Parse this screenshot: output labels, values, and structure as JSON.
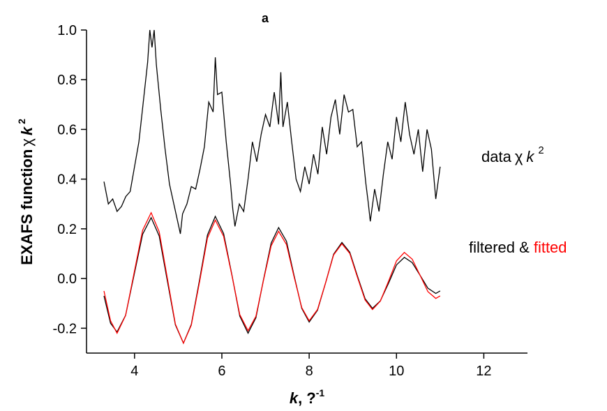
{
  "chart_data": {
    "type": "line",
    "title": "a",
    "x_label": [
      "k",
      ", ?",
      "-1"
    ],
    "y_label": [
      "EXAFS function",
      "χ",
      "k",
      "2"
    ],
    "annotations": {
      "data": [
        "data",
        "χ",
        "k",
        "2"
      ],
      "fit": [
        "filtered &",
        "fitted"
      ]
    },
    "xlim": [
      2.9,
      13
    ],
    "xticks": [
      4,
      6,
      8,
      10,
      12
    ],
    "ylim": [
      -0.3,
      1.0
    ],
    "yticks": [
      -0.2,
      {
        "value": 0,
        "label": "0.0"
      },
      0.2,
      0.4,
      0.6,
      0.8,
      {
        "value": 1,
        "label": "1.0"
      }
    ],
    "x": [
      3.3,
      3.45,
      3.6,
      3.795,
      3.99,
      4.185,
      4.38,
      4.565,
      4.75,
      4.935,
      5.12,
      5.3,
      5.49,
      5.67,
      5.85,
      6.04,
      6.23,
      6.41,
      6.6,
      6.78,
      6.95,
      7.13,
      7.3,
      7.48,
      7.65,
      7.83,
      8.0,
      8.19,
      8.38,
      8.56,
      8.75,
      8.93,
      9.1,
      9.28,
      9.45,
      9.63,
      9.82,
      10.0,
      10.18,
      10.36,
      10.54,
      10.72,
      10.9,
      11.0
    ],
    "series": [
      {
        "color": "#000000",
        "x": [
          3.3,
          3.4,
          3.5,
          3.6,
          3.7,
          3.8,
          3.9,
          4.0,
          4.1,
          4.2,
          4.3,
          4.35,
          4.4,
          4.45,
          4.5,
          4.6,
          4.7,
          4.8,
          4.9,
          5.0,
          5.05,
          5.1,
          5.2,
          5.3,
          5.4,
          5.5,
          5.6,
          5.7,
          5.8,
          5.85,
          5.9,
          6.0,
          6.1,
          6.2,
          6.25,
          6.3,
          6.4,
          6.5,
          6.6,
          6.7,
          6.8,
          6.9,
          7.0,
          7.1,
          7.2,
          7.3,
          7.35,
          7.4,
          7.5,
          7.6,
          7.7,
          7.8,
          7.9,
          8.0,
          8.1,
          8.2,
          8.3,
          8.4,
          8.5,
          8.6,
          8.7,
          8.8,
          8.9,
          9.0,
          9.1,
          9.2,
          9.3,
          9.35,
          9.4,
          9.5,
          9.6,
          9.7,
          9.8,
          9.9,
          10.0,
          10.1,
          10.2,
          10.3,
          10.4,
          10.5,
          10.6,
          10.7,
          10.8,
          10.9,
          11.0
        ],
        "values": [
          0.39,
          0.3,
          0.32,
          0.27,
          0.29,
          0.33,
          0.35,
          0.45,
          0.55,
          0.71,
          0.87,
          1.0,
          0.93,
          1.0,
          0.86,
          0.68,
          0.52,
          0.38,
          0.3,
          0.22,
          0.18,
          0.26,
          0.3,
          0.37,
          0.36,
          0.44,
          0.53,
          0.71,
          0.67,
          0.89,
          0.74,
          0.75,
          0.55,
          0.38,
          0.28,
          0.21,
          0.3,
          0.27,
          0.4,
          0.55,
          0.47,
          0.58,
          0.66,
          0.61,
          0.75,
          0.62,
          0.83,
          0.61,
          0.71,
          0.55,
          0.4,
          0.35,
          0.45,
          0.38,
          0.5,
          0.42,
          0.61,
          0.5,
          0.65,
          0.72,
          0.58,
          0.74,
          0.67,
          0.68,
          0.53,
          0.55,
          0.38,
          0.31,
          0.23,
          0.36,
          0.27,
          0.42,
          0.55,
          0.48,
          0.65,
          0.55,
          0.71,
          0.58,
          0.5,
          0.6,
          0.43,
          0.6,
          0.52,
          0.32,
          0.45
        ]
      },
      {
        "color": "#000000",
        "values": [
          -0.07,
          -0.18,
          -0.215,
          -0.148,
          0.015,
          0.178,
          0.245,
          0.171,
          -0.008,
          -0.186,
          -0.26,
          -0.185,
          -0.005,
          0.175,
          0.25,
          0.181,
          0.015,
          -0.151,
          -0.22,
          -0.158,
          -0.008,
          0.143,
          0.205,
          0.15,
          0.015,
          -0.12,
          -0.175,
          -0.128,
          -0.015,
          0.098,
          0.145,
          0.106,
          0.013,
          -0.081,
          -0.12,
          -0.09,
          -0.018,
          0.055,
          0.085,
          0.064,
          0.013,
          -0.039,
          -0.06,
          -0.05
        ]
      },
      {
        "color": "#ff0000",
        "values": [
          -0.05,
          -0.17,
          -0.22,
          -0.149,
          0.023,
          0.194,
          0.265,
          0.188,
          0.003,
          -0.183,
          -0.26,
          -0.188,
          -0.013,
          0.163,
          0.235,
          0.17,
          0.013,
          -0.145,
          -0.21,
          -0.152,
          -0.01,
          0.132,
          0.19,
          0.137,
          0.01,
          -0.117,
          -0.17,
          -0.125,
          -0.015,
          0.095,
          0.14,
          0.101,
          0.008,
          -0.086,
          -0.125,
          -0.091,
          -0.01,
          0.071,
          0.105,
          0.078,
          0.013,
          -0.053,
          -0.08,
          -0.07
        ]
      }
    ]
  }
}
